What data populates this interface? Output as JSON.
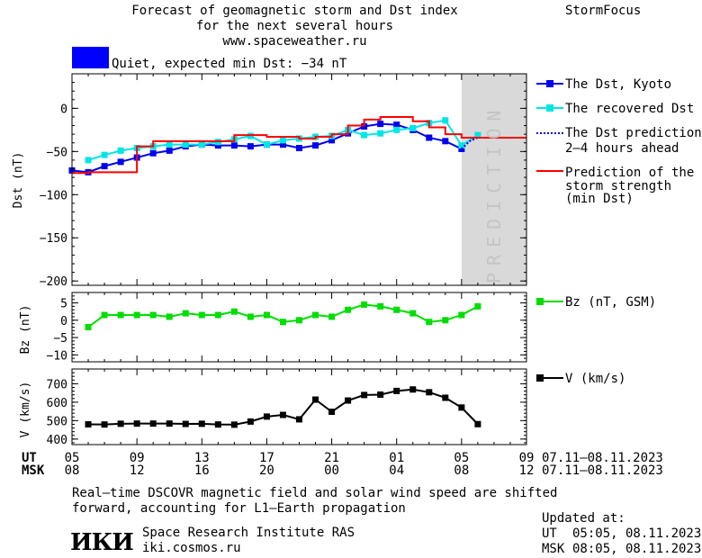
{
  "header": {
    "title_line1": "Forecast of geomagnetic storm and Dst index",
    "title_line2": "for the next several hours",
    "title_line3": "www.spaceweather.ru",
    "app_name": "StormFocus",
    "status_text": "Quiet, expected min Dst: −34 nT",
    "status_color": "#0000ff"
  },
  "legend": {
    "dst_kyoto": "The Dst, Kyoto",
    "recovered": "The recovered Dst",
    "prediction_line1": "The Dst prediction",
    "prediction_line2": "2–4 hours ahead",
    "strength_line1": "Prediction of the",
    "strength_line2": "storm strength",
    "strength_line3": "(min Dst)",
    "bz": "Bz (nT, GSM)",
    "v": "V (km/s)"
  },
  "time_axis": {
    "ut_label": "UT",
    "msk_label": "MSK",
    "ut_ticks": [
      "05",
      "09",
      "13",
      "17",
      "21",
      "01",
      "05",
      "09"
    ],
    "msk_ticks": [
      "08",
      "12",
      "16",
      "20",
      "00",
      "04",
      "08",
      "12"
    ],
    "date_range_ut": "07.11–08.11.2023",
    "date_range_msk": "07.11–08.11.2023"
  },
  "footer": {
    "note_line1": "Real–time DSCOVR magnetic field and solar wind speed are shifted",
    "note_line2": "forward, accounting for L1–Earth propagation",
    "institute": "Space Research Institute RAS",
    "website": "iki.cosmos.ru",
    "logo_text": "ИКИ",
    "updated_label": "Updated at:",
    "updated_ut_label": "UT",
    "updated_ut_value": "05:05, 08.11.2023",
    "updated_msk_label": "MSK",
    "updated_msk_value": "08:05, 08.11.2023"
  },
  "chart_data": [
    {
      "type": "line",
      "panel": "dst",
      "ylabel": "Dst (nT)",
      "ylim": [
        -205,
        40
      ],
      "yticks": [
        0,
        -50,
        -100,
        -150,
        -200
      ],
      "xlim": [
        5,
        33
      ],
      "prediction_band": [
        29,
        33
      ],
      "prediction_label": "PREDICTION",
      "series": [
        {
          "name": "The Dst, Kyoto",
          "color": "#0000ee",
          "marker": "square",
          "x": [
            5,
            6,
            7,
            8,
            9,
            10,
            11,
            12,
            13,
            14,
            15,
            16,
            17,
            18,
            19,
            20,
            21,
            22,
            23,
            24,
            25,
            26,
            27,
            28,
            29
          ],
          "y": [
            -72,
            -74,
            -67,
            -62,
            -57,
            -52,
            -49,
            -44,
            -42,
            -43,
            -43,
            -44,
            -42,
            -42,
            -46,
            -43,
            -37,
            -29,
            -21,
            -18,
            -19,
            -25,
            -34,
            -38,
            -47
          ]
        },
        {
          "name": "The recovered Dst",
          "color": "#00e5e5",
          "marker": "square",
          "x": [
            6,
            7,
            8,
            9,
            10,
            11,
            12,
            13,
            14,
            15,
            16,
            17,
            18,
            19,
            20,
            21,
            22,
            23,
            24,
            25,
            26,
            27,
            28,
            29,
            30
          ],
          "y": [
            -60,
            -54,
            -49,
            -46,
            -44,
            -42,
            -42,
            -42,
            -39,
            -36,
            -32,
            -42,
            -37,
            -35,
            -33,
            -32,
            -25,
            -31,
            -29,
            -25,
            -23,
            -17,
            -14,
            -43,
            -31
          ]
        },
        {
          "name": "The Dst prediction 2–4 hours ahead",
          "color": "#0000ee",
          "style": "dotted",
          "x": [
            29,
            29.5,
            30
          ],
          "y": [
            -47,
            -38,
            -34
          ]
        },
        {
          "name": "Prediction of the storm strength (min Dst)",
          "color": "#ff0000",
          "style": "step",
          "x": [
            5,
            6,
            8,
            9,
            10,
            11,
            12,
            13,
            14,
            15,
            16,
            17,
            18,
            19,
            20,
            21,
            22,
            23,
            24,
            25,
            26,
            27,
            28,
            29,
            33
          ],
          "y": [
            -75,
            -74,
            -74,
            -44,
            -38,
            -38,
            -38,
            -38,
            -38,
            -31,
            -31,
            -33,
            -33,
            -35,
            -33,
            -30,
            -20,
            -13,
            -10,
            -10,
            -15,
            -22,
            -30,
            -34,
            -34
          ]
        }
      ]
    },
    {
      "type": "line",
      "panel": "bz",
      "ylabel": "Bz (nT)",
      "ylim": [
        -12,
        8
      ],
      "yticks": [
        5,
        0,
        -5,
        -10
      ],
      "xlim": [
        5,
        33
      ],
      "series": [
        {
          "name": "Bz (nT, GSM)",
          "color": "#00dd00",
          "marker": "square",
          "x": [
            6,
            7,
            8,
            9,
            10,
            11,
            12,
            13,
            14,
            15,
            16,
            17,
            18,
            19,
            20,
            21,
            22,
            23,
            24,
            25,
            26,
            27,
            28,
            29,
            30
          ],
          "y": [
            -2,
            1.5,
            1.5,
            1.5,
            1.5,
            1,
            2,
            1.5,
            1.5,
            2.5,
            1,
            1.5,
            -0.5,
            0,
            1.5,
            1,
            3,
            4.5,
            4,
            3,
            2,
            -0.5,
            0,
            1.5,
            4
          ]
        }
      ]
    },
    {
      "type": "line",
      "panel": "v",
      "ylabel": "V (km/s)",
      "ylim": [
        370,
        780
      ],
      "yticks": [
        700,
        600,
        500,
        400
      ],
      "xlim": [
        5,
        33
      ],
      "series": [
        {
          "name": "V (km/s)",
          "color": "#000000",
          "marker": "square",
          "x": [
            6,
            7,
            8,
            9,
            10,
            11,
            12,
            13,
            14,
            15,
            16,
            17,
            18,
            19,
            20,
            21,
            22,
            23,
            24,
            25,
            26,
            27,
            28,
            29,
            30
          ],
          "y": [
            480,
            479,
            483,
            484,
            484,
            484,
            482,
            483,
            479,
            478,
            495,
            522,
            531,
            507,
            614,
            548,
            609,
            639,
            641,
            661,
            669,
            654,
            624,
            571,
            481
          ]
        }
      ]
    }
  ]
}
